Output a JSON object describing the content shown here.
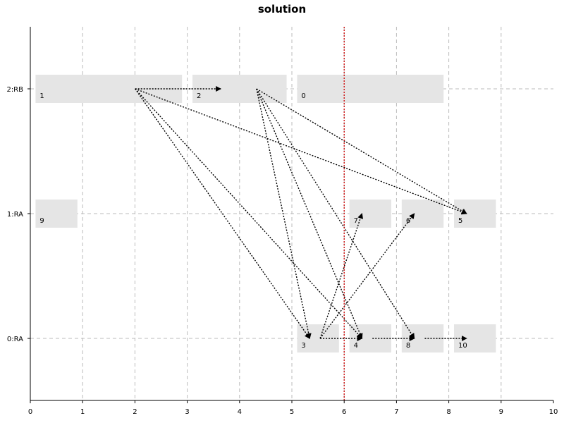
{
  "chart_data": {
    "type": "gantt",
    "title": "solution",
    "xlim": [
      0,
      10
    ],
    "x_ticks": [
      "0",
      "1",
      "2",
      "3",
      "4",
      "5",
      "6",
      "7",
      "8",
      "9",
      "10"
    ],
    "rows": [
      "0:RA",
      "1:RA",
      "2:RB"
    ],
    "grid": true,
    "bar_color": "#e5e5e5",
    "edge_color": "#000000",
    "marker": {
      "x": 6.0,
      "color": "#cc0000",
      "style": "dotted"
    },
    "tasks": [
      {
        "id": "0",
        "row": 2,
        "start": 5.1,
        "end": 7.9
      },
      {
        "id": "1",
        "row": 2,
        "start": 0.1,
        "end": 2.9
      },
      {
        "id": "2",
        "row": 2,
        "start": 3.1,
        "end": 4.9
      },
      {
        "id": "3",
        "row": 0,
        "start": 5.1,
        "end": 5.9
      },
      {
        "id": "4",
        "row": 0,
        "start": 6.1,
        "end": 6.9
      },
      {
        "id": "5",
        "row": 1,
        "start": 8.1,
        "end": 8.9
      },
      {
        "id": "6",
        "row": 1,
        "start": 7.1,
        "end": 7.9
      },
      {
        "id": "7",
        "row": 1,
        "start": 6.1,
        "end": 6.9
      },
      {
        "id": "8",
        "row": 0,
        "start": 7.1,
        "end": 7.9
      },
      {
        "id": "9",
        "row": 1,
        "start": 0.1,
        "end": 0.9
      },
      {
        "id": "10",
        "row": 0,
        "start": 8.1,
        "end": 8.9
      }
    ],
    "edges": [
      {
        "from": "1",
        "to": "2"
      },
      {
        "from": "1",
        "to": "3"
      },
      {
        "from": "1",
        "to": "4"
      },
      {
        "from": "1",
        "to": "5"
      },
      {
        "from": "2",
        "to": "3"
      },
      {
        "from": "2",
        "to": "4"
      },
      {
        "from": "2",
        "to": "5"
      },
      {
        "from": "2",
        "to": "8"
      },
      {
        "from": "3",
        "to": "7"
      },
      {
        "from": "3",
        "to": "6"
      },
      {
        "from": "3",
        "to": "4"
      },
      {
        "from": "4",
        "to": "8"
      },
      {
        "from": "8",
        "to": "10"
      }
    ]
  }
}
